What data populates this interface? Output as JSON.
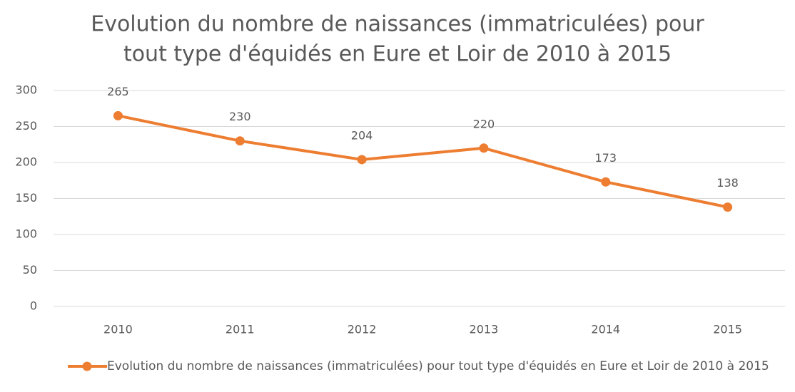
{
  "chart_data": {
    "type": "line",
    "title": [
      "Evolution du nombre de naissances (immatriculées) pour",
      "tout type d'équidés en Eure et Loir de 2010 à 2015"
    ],
    "categories": [
      "2010",
      "2011",
      "2012",
      "2013",
      "2014",
      "2015"
    ],
    "series": [
      {
        "name": "Evolution du nombre de naissances (immatriculées) pour tout type d'équidés en Eure et Loir de 2010 à 2015",
        "color": "#ED7D31",
        "values": [
          265,
          230,
          204,
          220,
          173,
          138
        ]
      }
    ],
    "ylim": [
      0,
      300
    ],
    "yticks": [
      0,
      50,
      100,
      150,
      200,
      250,
      300
    ],
    "grid": true,
    "legend": "bottom"
  }
}
